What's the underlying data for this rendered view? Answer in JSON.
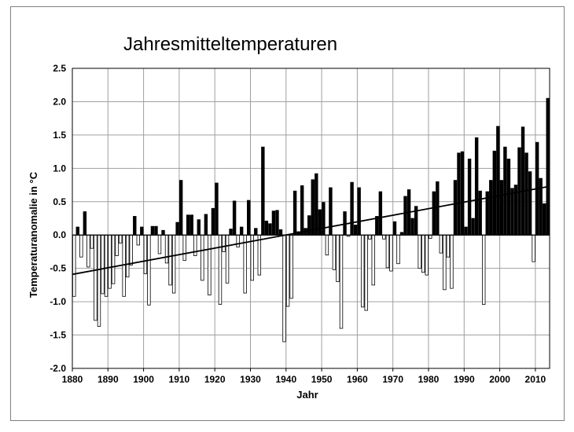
{
  "chart_data": {
    "type": "bar",
    "title": "Jahresmitteltemperaturen",
    "xlabel": "Jahr",
    "ylabel": "Temperaturanomalie in °C",
    "xlim": [
      1880,
      2014
    ],
    "ylim": [
      -2.0,
      2.5
    ],
    "x_ticks": [
      "1880",
      "1890",
      "1900",
      "1910",
      "1920",
      "1930",
      "1940",
      "1950",
      "1960",
      "1970",
      "1980",
      "1990",
      "2000",
      "2010"
    ],
    "y_ticks": [
      "2.5",
      "2.0",
      "1.5",
      "1.0",
      "0.5",
      "0.0",
      "-0.5",
      "-1.0",
      "-1.5",
      "-2.0"
    ],
    "grid": true,
    "bar_colors": {
      "positive": "#000000",
      "negative": "#ffffff"
    },
    "years": [
      1881,
      1882,
      1883,
      1884,
      1885,
      1886,
      1887,
      1888,
      1889,
      1890,
      1891,
      1892,
      1893,
      1894,
      1895,
      1896,
      1897,
      1898,
      1899,
      1900,
      1901,
      1902,
      1903,
      1904,
      1905,
      1906,
      1907,
      1908,
      1909,
      1910,
      1911,
      1912,
      1913,
      1914,
      1915,
      1916,
      1917,
      1918,
      1919,
      1920,
      1921,
      1922,
      1923,
      1924,
      1925,
      1926,
      1927,
      1928,
      1929,
      1930,
      1931,
      1932,
      1933,
      1934,
      1935,
      1936,
      1937,
      1938,
      1939,
      1940,
      1941,
      1942,
      1943,
      1944,
      1945,
      1946,
      1947,
      1948,
      1949,
      1950,
      1951,
      1952,
      1953,
      1954,
      1955,
      1956,
      1957,
      1958,
      1959,
      1960,
      1961,
      1962,
      1963,
      1964,
      1965,
      1966,
      1967,
      1968,
      1969,
      1970,
      1971,
      1972,
      1973,
      1974,
      1975,
      1976,
      1977,
      1978,
      1979,
      1980,
      1981,
      1982,
      1983,
      1984,
      1985,
      1986,
      1987,
      1988,
      1989,
      1990,
      1991,
      1992,
      1993,
      1994,
      1995,
      1996,
      1997,
      1998,
      1999,
      2000,
      2001,
      2002,
      2003,
      2004,
      2005,
      2006,
      2007,
      2008,
      2009,
      2010,
      2011,
      2012,
      2013,
      2014
    ],
    "values": [
      -0.92,
      0.12,
      -0.33,
      0.35,
      -0.48,
      -0.2,
      -1.28,
      -1.37,
      -0.88,
      -0.92,
      -0.8,
      -0.73,
      -0.31,
      -0.12,
      -0.92,
      -0.63,
      -0.45,
      0.28,
      -0.15,
      0.12,
      -0.58,
      -1.05,
      0.13,
      0.13,
      -0.28,
      0.07,
      -0.42,
      -0.75,
      -0.87,
      0.19,
      0.82,
      -0.38,
      0.3,
      0.3,
      -0.31,
      0.23,
      -0.68,
      0.31,
      -0.9,
      0.4,
      0.78,
      -1.04,
      -0.25,
      -0.72,
      0.09,
      0.51,
      -0.18,
      0.12,
      -0.87,
      0.52,
      -0.68,
      0.1,
      -0.6,
      1.32,
      0.21,
      0.17,
      0.36,
      0.37,
      0.08,
      -1.6,
      -1.07,
      -0.95,
      0.66,
      0.05,
      0.74,
      0.1,
      0.29,
      0.83,
      0.92,
      0.38,
      0.49,
      -0.3,
      0.71,
      -0.52,
      -0.7,
      -1.4,
      0.35,
      -0.02,
      0.79,
      0.15,
      0.71,
      -1.08,
      -1.13,
      -0.06,
      -0.75,
      0.28,
      0.65,
      -0.06,
      -0.49,
      -0.54,
      0.2,
      -0.43,
      0.04,
      0.58,
      0.68,
      0.25,
      0.43,
      -0.5,
      -0.56,
      -0.6,
      -0.05,
      0.65,
      0.8,
      -0.27,
      -0.82,
      -0.33,
      -0.8,
      0.82,
      1.23,
      1.25,
      0.12,
      1.14,
      0.25,
      1.46,
      0.66,
      -1.04,
      0.65,
      0.82,
      1.26,
      1.63,
      0.82,
      1.32,
      1.14,
      0.7,
      0.75,
      1.31,
      1.62,
      1.23,
      0.95,
      -0.4,
      1.39,
      0.85,
      0.47,
      2.05
    ],
    "trend": {
      "start": [
        1880,
        -0.59
      ],
      "end": [
        2014,
        0.73
      ]
    }
  }
}
